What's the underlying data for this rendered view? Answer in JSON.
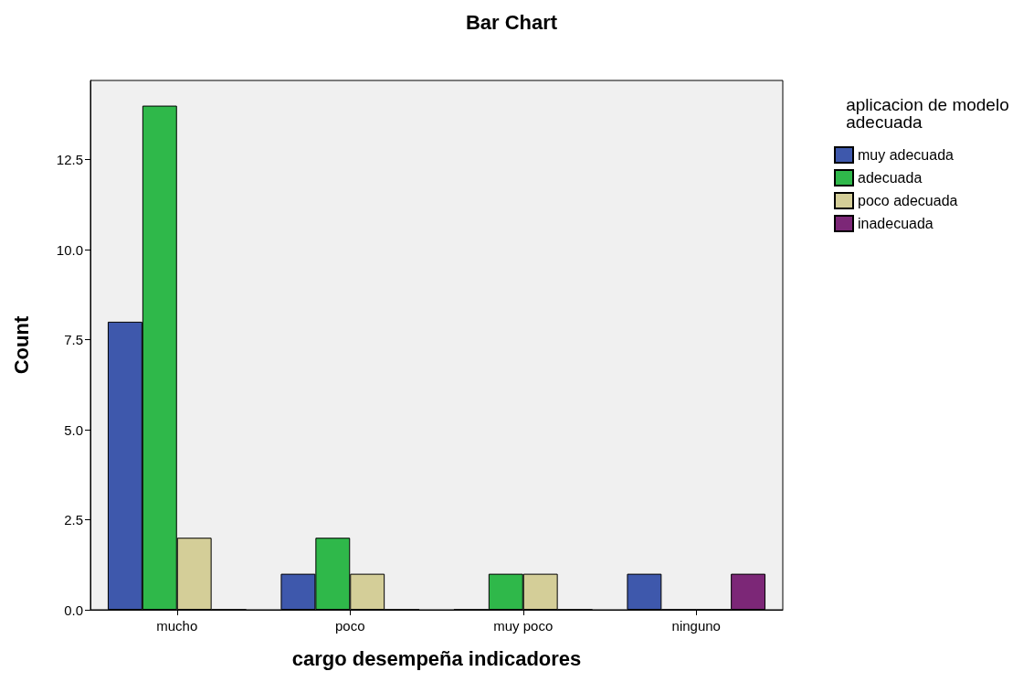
{
  "chart_data": {
    "type": "bar",
    "title": "Bar Chart",
    "xlabel": "cargo desempeña indicadores",
    "ylabel": "Count",
    "legend_title": "aplicacion de modelo adecuada",
    "categories": [
      "mucho",
      "poco",
      "muy poco",
      "ninguno"
    ],
    "series": [
      {
        "name": "muy adecuada",
        "color": "#3e58ac",
        "values": [
          8,
          1,
          0,
          1
        ]
      },
      {
        "name": "adecuada",
        "color": "#2fb84a",
        "values": [
          14,
          2,
          1,
          0
        ]
      },
      {
        "name": "poco adecuada",
        "color": "#d4ce98",
        "values": [
          2,
          1,
          1,
          0
        ]
      },
      {
        "name": "inadecuada",
        "color": "#7c2777",
        "values": [
          0,
          0,
          0,
          1
        ]
      }
    ],
    "ylim": [
      0,
      14.7
    ],
    "yticks": [
      {
        "value": 0,
        "label": "0.0"
      },
      2.5,
      {
        "value": 5,
        "label": "5.0"
      },
      7.5,
      {
        "value": 10,
        "label": "10.0"
      },
      12.5
    ],
    "grid": false,
    "legend": "top right"
  }
}
